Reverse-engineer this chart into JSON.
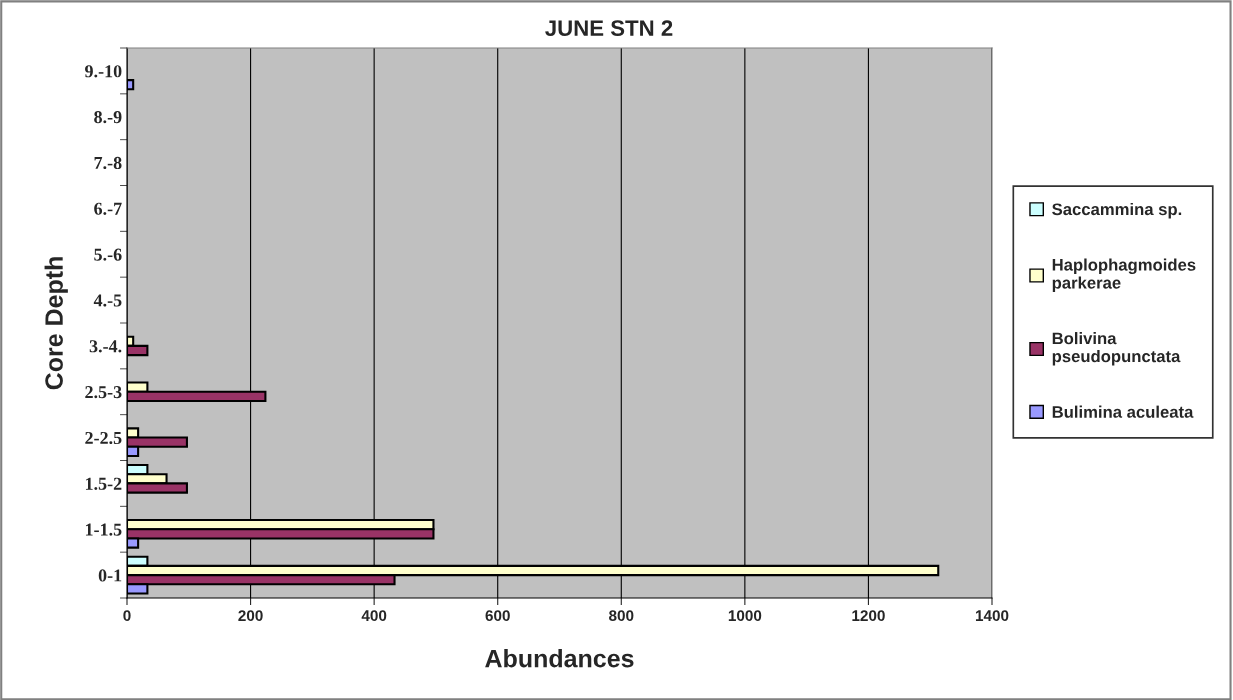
{
  "chart_data": {
    "type": "bar",
    "orientation": "horizontal",
    "title": "JUNE STN 2",
    "xlabel": "Abundances",
    "ylabel": "Core Depth",
    "categories": [
      "9.-10",
      "8.-9",
      "7.-8",
      "6.-7",
      "5.-6",
      "4.-5",
      "3.-4.",
      "2.5-3",
      "2-2.5",
      "1.5-2",
      "1-1.5",
      "0-1"
    ],
    "series": [
      {
        "name": "Saccammina sp.",
        "color": "#ccffff",
        "values": [
          null,
          null,
          null,
          null,
          null,
          null,
          null,
          null,
          null,
          33,
          null,
          33
        ]
      },
      {
        "name": "Haplophagmoides parkerae",
        "color": "#ffffcc",
        "values": [
          null,
          null,
          null,
          null,
          null,
          null,
          10,
          33,
          18,
          64,
          496,
          1313
        ]
      },
      {
        "name": "Bolivina pseudopunctata",
        "color": "#993366",
        "values": [
          null,
          null,
          null,
          null,
          null,
          null,
          33,
          224,
          97,
          97,
          496,
          433
        ]
      },
      {
        "name": "Bulimina aculeata",
        "color": "#9999ff",
        "values": [
          10,
          null,
          null,
          null,
          null,
          null,
          null,
          null,
          18,
          null,
          18,
          33
        ]
      }
    ],
    "xlim": [
      0,
      1400
    ],
    "xticks": [
      0,
      200,
      400,
      600,
      800,
      1000,
      1200,
      1400
    ],
    "grid": "x",
    "legend": "right"
  }
}
